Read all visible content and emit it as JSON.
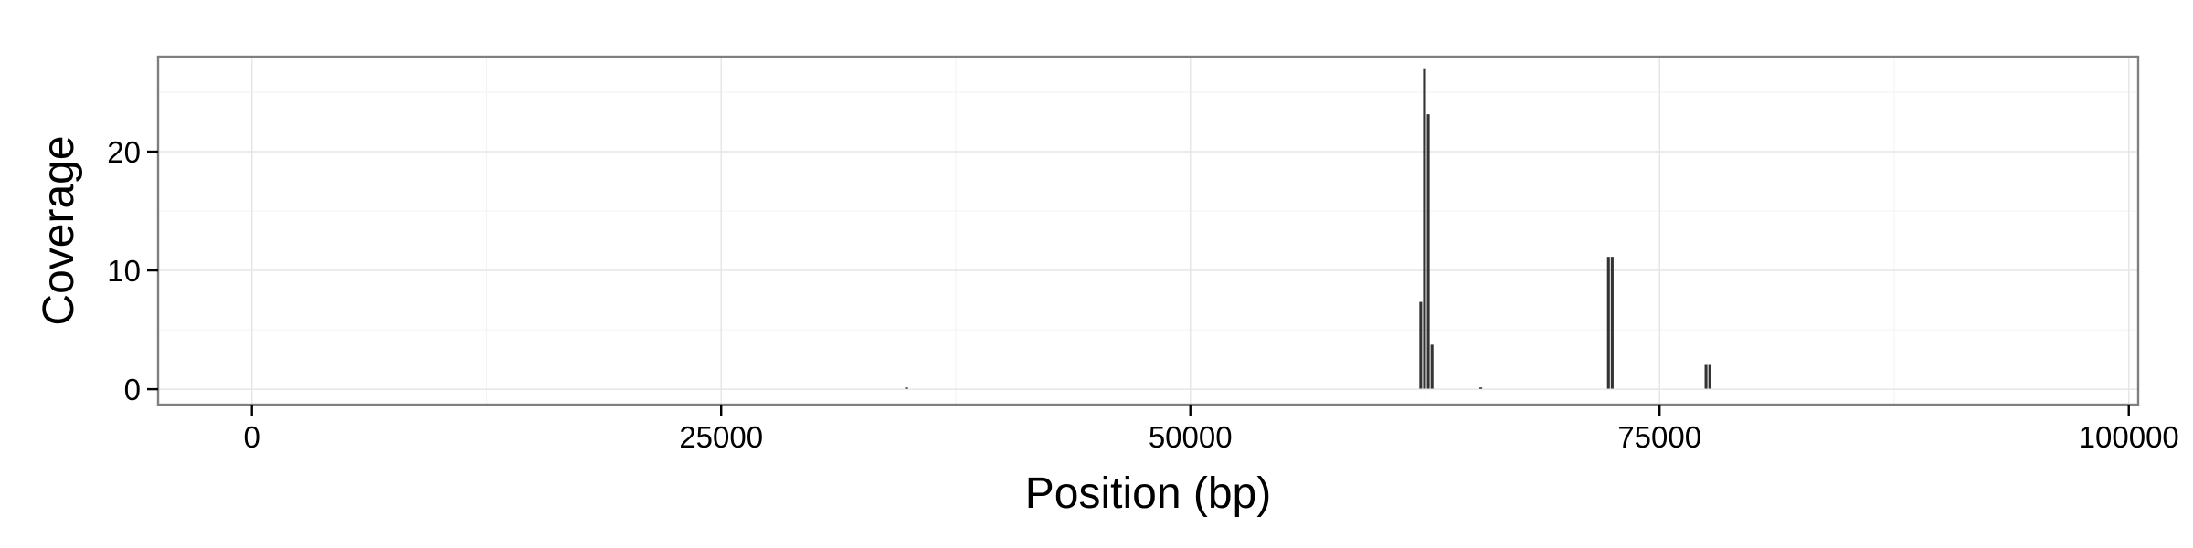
{
  "chart_data": {
    "type": "bar",
    "xlabel": "Position (bp)",
    "ylabel": "Coverage",
    "xlim": [
      -5000,
      100500
    ],
    "ylim": [
      -1.3,
      28
    ],
    "x_ticks": [
      0,
      25000,
      50000,
      75000,
      100000
    ],
    "x_tick_labels": [
      "0",
      "25000",
      "50000",
      "75000",
      "100000"
    ],
    "x_minor_ticks": [
      12500,
      37500,
      62500,
      87500
    ],
    "y_ticks": [
      0,
      10,
      20
    ],
    "y_tick_labels": [
      "0",
      "10",
      "20"
    ],
    "y_minor_ticks": [
      5,
      15,
      25
    ],
    "grid": true,
    "bar_width": 200,
    "bar_color": "#333333",
    "bars": [
      {
        "x": 34900,
        "y": 0.1
      },
      {
        "x": 62300,
        "y": 7.3
      },
      {
        "x": 62500,
        "y": 26.9
      },
      {
        "x": 62700,
        "y": 23.1
      },
      {
        "x": 62900,
        "y": 3.7
      },
      {
        "x": 65500,
        "y": 0.1
      },
      {
        "x": 72300,
        "y": 11.1
      },
      {
        "x": 72500,
        "y": 11.1
      },
      {
        "x": 77500,
        "y": 2.0
      },
      {
        "x": 77700,
        "y": 2.0
      }
    ]
  }
}
